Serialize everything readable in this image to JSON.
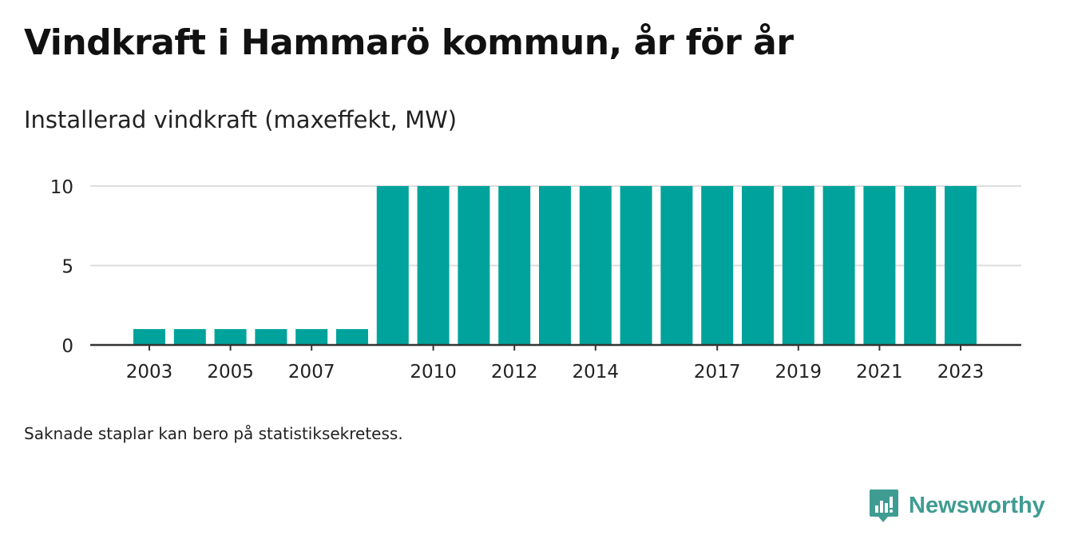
{
  "title": "Vindkraft i Hammarö kommun, år för år",
  "subtitle": "Installerad vindkraft (maxeffekt, MW)",
  "note": "Saknade staplar kan bero på statistiksekretess.",
  "brand": {
    "name": "Newsworthy",
    "icon": "newsworthy-logo-icon",
    "color": "#3f9c92"
  },
  "colors": {
    "bar": "#00a39b",
    "grid": "#dddddd",
    "axis": "#333333",
    "text": "#111111"
  },
  "chart_data": {
    "type": "bar",
    "categories": [
      "2003",
      "2004",
      "2005",
      "2006",
      "2007",
      "2008",
      "2009",
      "2010",
      "2011",
      "2012",
      "2013",
      "2014",
      "2015",
      "2016",
      "2017",
      "2018",
      "2019",
      "2020",
      "2021",
      "2022",
      "2023"
    ],
    "values": [
      1,
      1,
      1,
      1,
      1,
      1,
      10,
      10,
      10,
      10,
      10,
      10,
      10,
      10,
      10,
      10,
      10,
      10,
      10,
      10,
      10
    ],
    "x_tick_labels": [
      "2003",
      "2005",
      "2007",
      "2010",
      "2012",
      "2014",
      "2017",
      "2019",
      "2021",
      "2023"
    ],
    "y_ticks": [
      0,
      5,
      10
    ],
    "ylim": [
      0,
      10
    ],
    "title": "Vindkraft i Hammarö kommun, år för år",
    "subtitle": "Installerad vindkraft (maxeffekt, MW)",
    "xlabel": "",
    "ylabel": "",
    "grid": true
  }
}
